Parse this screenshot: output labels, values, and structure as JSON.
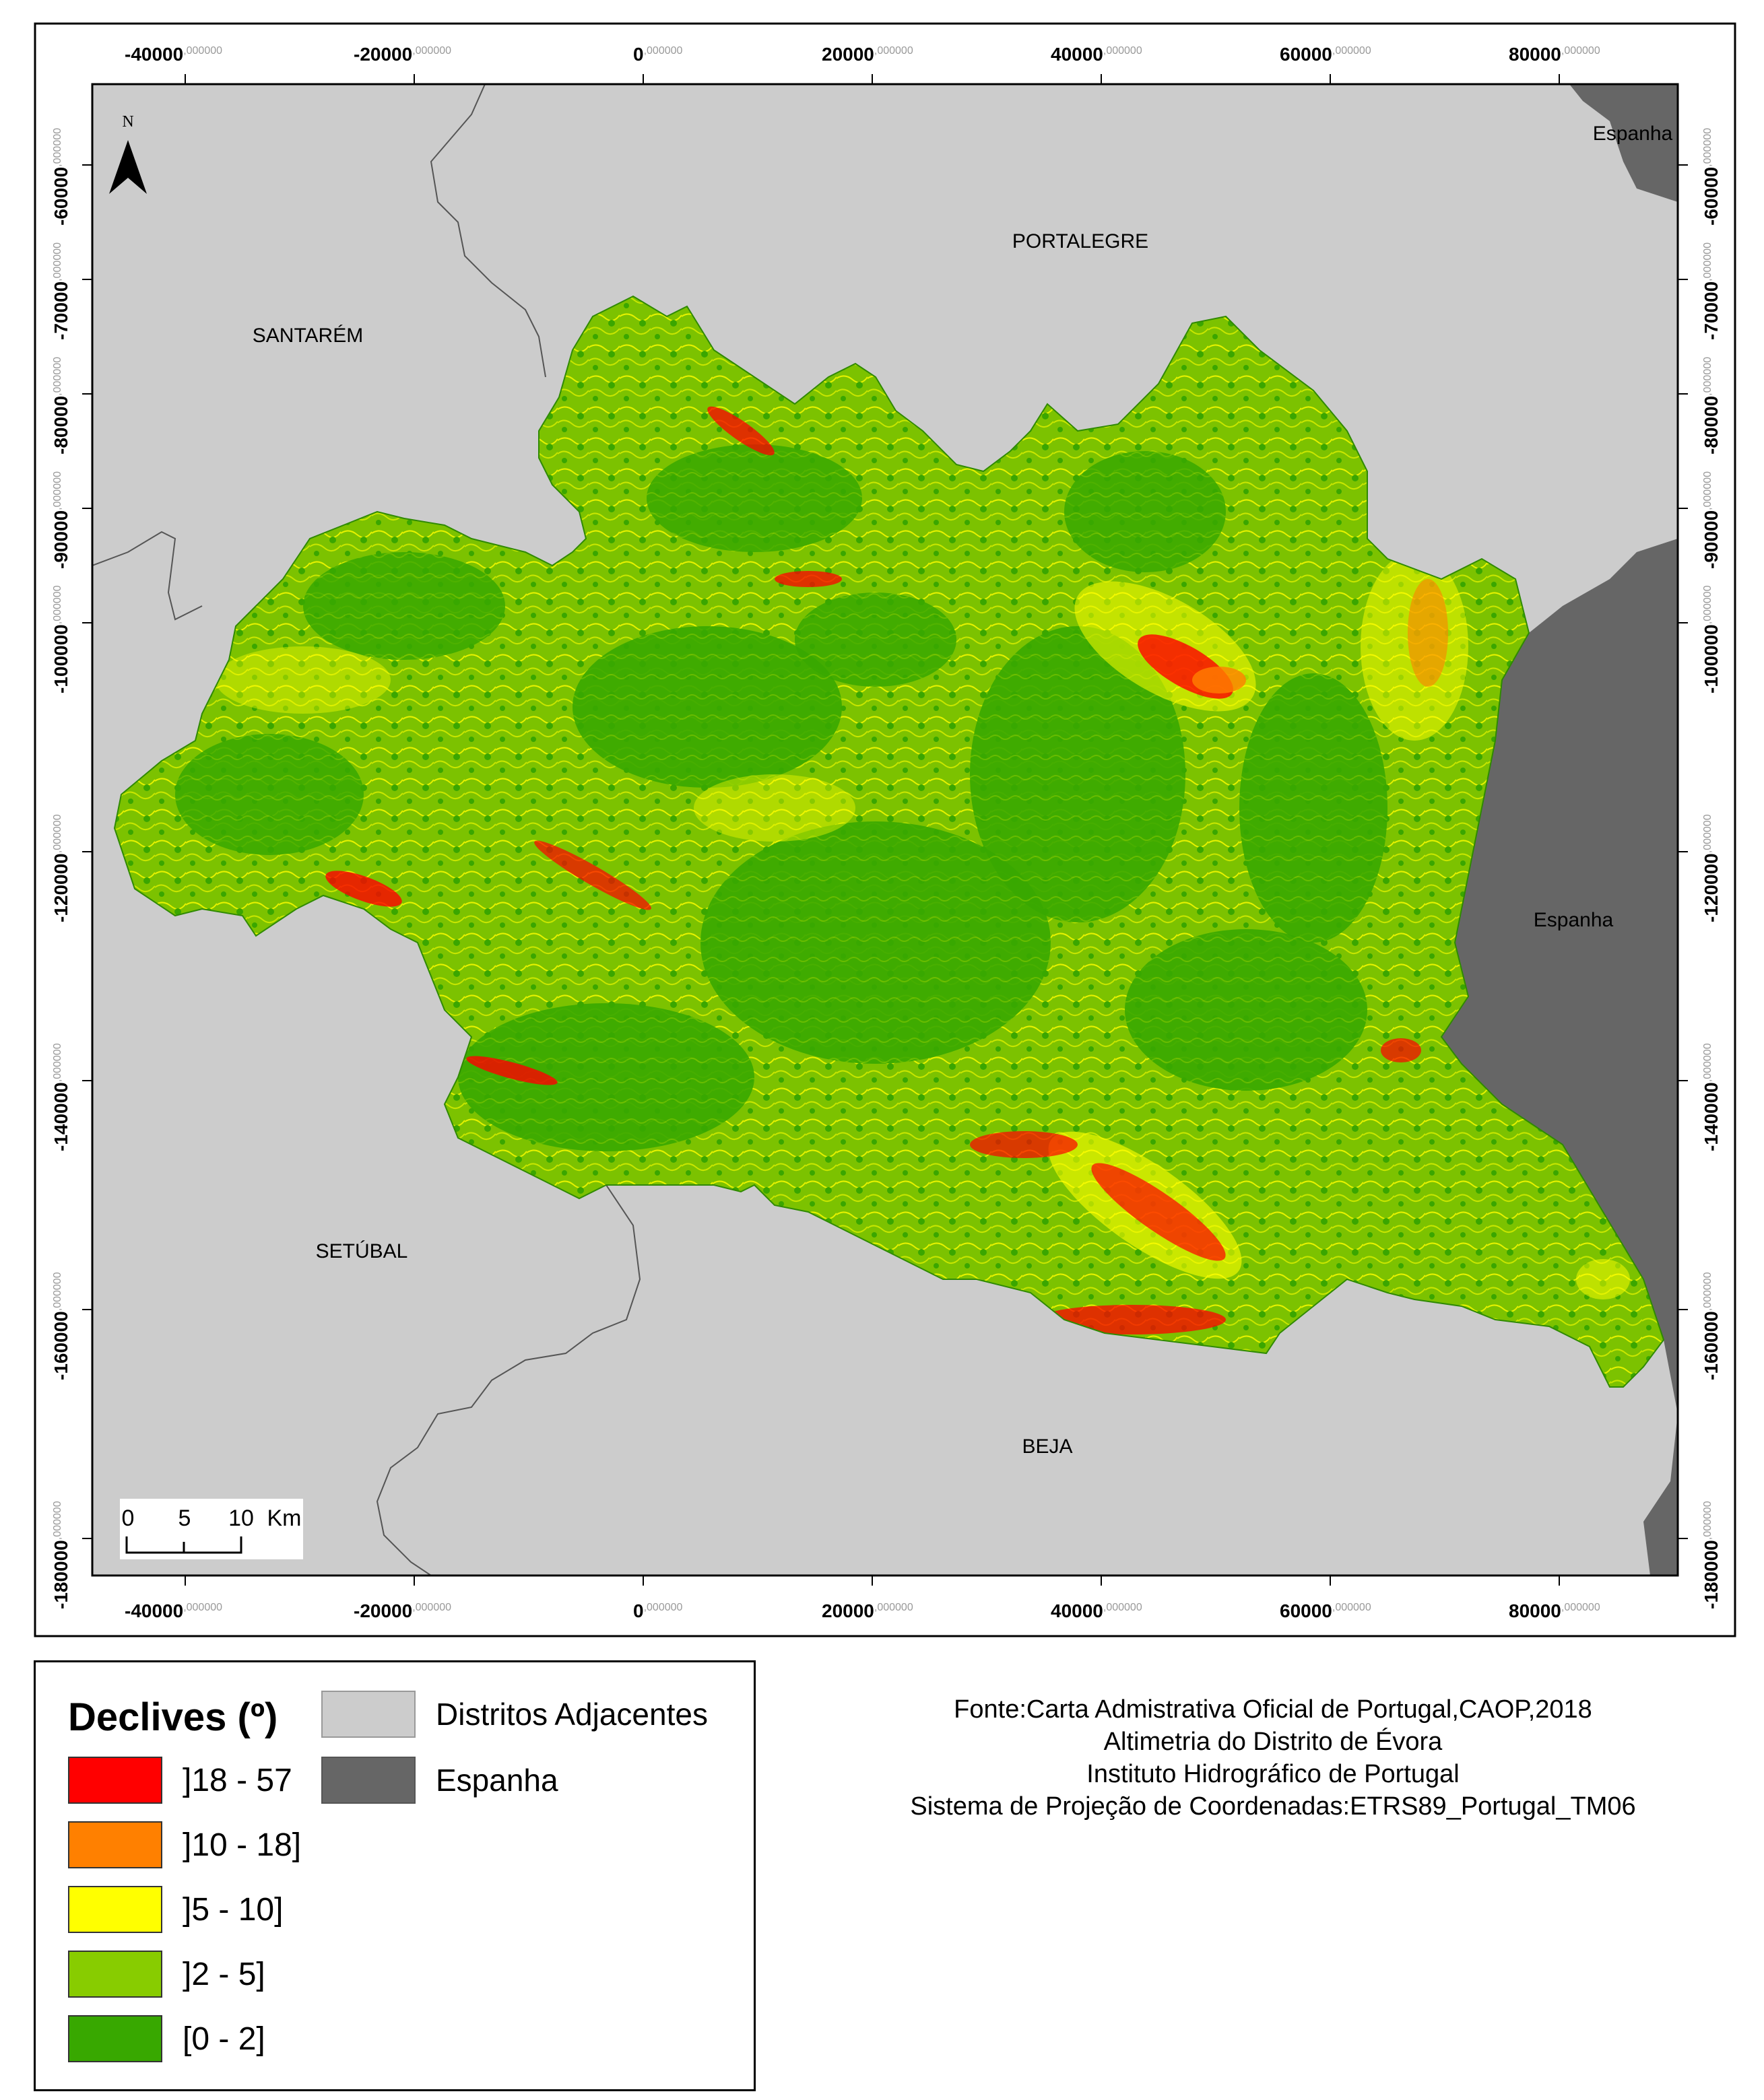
{
  "map": {
    "north_label": "N",
    "x_ticks": [
      {
        "main": "-40000",
        "dec": ",000000"
      },
      {
        "main": "-20000",
        "dec": ",000000"
      },
      {
        "main": "0",
        "dec": ",000000"
      },
      {
        "main": "20000",
        "dec": ",000000"
      },
      {
        "main": "40000",
        "dec": ",000000"
      },
      {
        "main": "60000",
        "dec": ",000000"
      },
      {
        "main": "80000",
        "dec": ",000000"
      }
    ],
    "y_ticks": [
      {
        "main": "-60000",
        "dec": ",000000"
      },
      {
        "main": "-70000",
        "dec": ",000000"
      },
      {
        "main": "-80000",
        "dec": ",000000"
      },
      {
        "main": "-90000",
        "dec": ",000000"
      },
      {
        "main": "-100000",
        "dec": ",000000"
      },
      {
        "main": "-120000",
        "dec": ",000000"
      },
      {
        "main": "-140000",
        "dec": ",000000"
      },
      {
        "main": "-160000",
        "dec": ",000000"
      },
      {
        "main": "-180000",
        "dec": ",000000"
      }
    ],
    "region_labels": {
      "portalegre": "PORTALEGRE",
      "santarem": "SANTARÉM",
      "setubal": "SETÚBAL",
      "beja": "BEJA",
      "espanha_top": "Espanha",
      "espanha_right": "Espanha"
    },
    "scalebar": {
      "t0": "0",
      "t5": "5",
      "t10": "10",
      "unit": "Km"
    },
    "colors": {
      "background_districts": "#cccccc",
      "spain": "#666666",
      "slope_18_57": "#ff0000",
      "slope_10_18": "#ff8000",
      "slope_5_10": "#ffff00",
      "slope_2_5": "#88cc00",
      "slope_0_2": "#38a800"
    }
  },
  "legend": {
    "title": "Declives (º)",
    "classes": [
      {
        "label": "]18 - 57",
        "color": "#ff0000"
      },
      {
        "label": "]10 - 18]",
        "color": "#ff8000"
      },
      {
        "label": "]5 - 10]",
        "color": "#ffff00"
      },
      {
        "label": "]2 - 5]",
        "color": "#88cc00"
      },
      {
        "label": "[0 - 2]",
        "color": "#38a800"
      }
    ],
    "areas": [
      {
        "label": "Distritos Adjacentes",
        "color": "#cccccc"
      },
      {
        "label": "Espanha",
        "color": "#666666"
      }
    ]
  },
  "source": {
    "line1": "Fonte:Carta Admistrativa Oficial de Portugal,CAOP,2018",
    "line2": "Altimetria do Distrito de Évora",
    "line3": "Instituto Hidrográfico de Portugal",
    "line4": "Sistema de Projeção de Coordenadas:ETRS89_Portugal_TM06"
  }
}
